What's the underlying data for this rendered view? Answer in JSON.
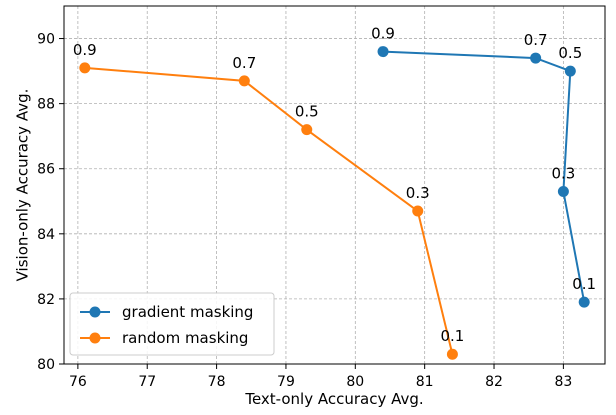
{
  "chart_data": {
    "type": "line",
    "title": "",
    "xlabel": "Text-only Accuracy Avg.",
    "ylabel": "Vision-only Accuracy Avg.",
    "xlim": [
      75.8,
      83.6
    ],
    "ylim": [
      80,
      91
    ],
    "xticks": [
      "76",
      "77",
      "78",
      "79",
      "80",
      "81",
      "82",
      "83"
    ],
    "yticks": [
      "80",
      "82",
      "84",
      "86",
      "88",
      "90"
    ],
    "grid": true,
    "legend_position": "bottom-left",
    "series": [
      {
        "name": "gradient masking",
        "color": "#1f77b4",
        "points": [
          {
            "x": 80.4,
            "y": 89.6,
            "label": "0.9"
          },
          {
            "x": 82.6,
            "y": 89.4,
            "label": "0.7"
          },
          {
            "x": 83.1,
            "y": 89.0,
            "label": "0.5"
          },
          {
            "x": 83.0,
            "y": 85.3,
            "label": "0.3"
          },
          {
            "x": 83.3,
            "y": 81.9,
            "label": "0.1"
          }
        ]
      },
      {
        "name": "random masking",
        "color": "#ff7f0e",
        "points": [
          {
            "x": 76.1,
            "y": 89.1,
            "label": "0.9"
          },
          {
            "x": 78.4,
            "y": 88.7,
            "label": "0.7"
          },
          {
            "x": 79.3,
            "y": 87.2,
            "label": "0.5"
          },
          {
            "x": 80.9,
            "y": 84.7,
            "label": "0.3"
          },
          {
            "x": 81.4,
            "y": 80.3,
            "label": "0.1"
          }
        ]
      }
    ]
  }
}
